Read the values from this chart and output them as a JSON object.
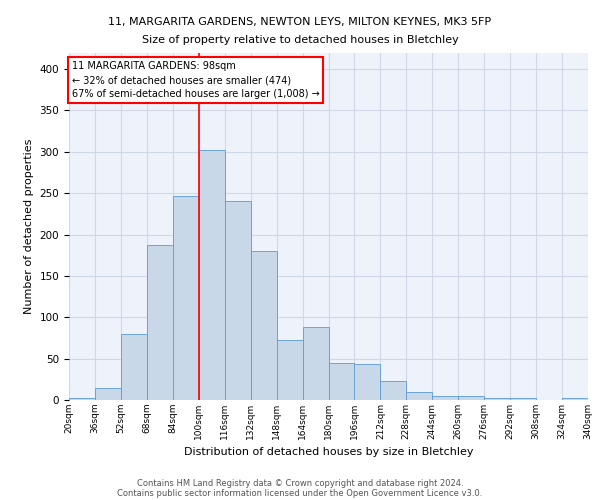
{
  "title_line1": "11, MARGARITA GARDENS, NEWTON LEYS, MILTON KEYNES, MK3 5FP",
  "title_line2": "Size of property relative to detached houses in Bletchley",
  "xlabel": "Distribution of detached houses by size in Bletchley",
  "ylabel": "Number of detached properties",
  "bar_color": "#c8d8e8",
  "bar_edge_color": "#5b9bd5",
  "grid_color": "#d0d8e8",
  "background_color": "#eef2fa",
  "bin_edges": [
    20,
    36,
    52,
    68,
    84,
    100,
    116,
    132,
    148,
    164,
    180,
    196,
    212,
    228,
    244,
    260,
    276,
    292,
    308,
    324,
    340
  ],
  "bar_heights": [
    3,
    14,
    80,
    187,
    246,
    302,
    240,
    180,
    72,
    88,
    45,
    43,
    23,
    10,
    5,
    5,
    3,
    3,
    0,
    3
  ],
  "red_line_x": 100,
  "annotation_text_line1": "11 MARGARITA GARDENS: 98sqm",
  "annotation_text_line2": "← 32% of detached houses are smaller (474)",
  "annotation_text_line3": "67% of semi-detached houses are larger (1,008) →",
  "footnote1": "Contains HM Land Registry data © Crown copyright and database right 2024.",
  "footnote2": "Contains public sector information licensed under the Open Government Licence v3.0.",
  "ylim": [
    0,
    420
  ],
  "yticks": [
    0,
    50,
    100,
    150,
    200,
    250,
    300,
    350,
    400
  ],
  "tick_labels": [
    "20sqm",
    "36sqm",
    "52sqm",
    "68sqm",
    "84sqm",
    "100sqm",
    "116sqm",
    "132sqm",
    "148sqm",
    "164sqm",
    "180sqm",
    "196sqm",
    "212sqm",
    "228sqm",
    "244sqm",
    "260sqm",
    "276sqm",
    "292sqm",
    "308sqm",
    "324sqm",
    "340sqm"
  ]
}
